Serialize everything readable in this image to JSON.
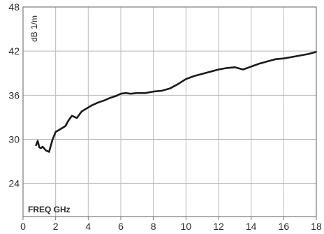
{
  "chart_data": {
    "type": "line",
    "xlabel": "FREQ GHz",
    "ylabel": "dB 1/m",
    "xlim": [
      0,
      18
    ],
    "ylim": [
      19.5,
      48
    ],
    "xticks": [
      0,
      2,
      4,
      6,
      8,
      10,
      12,
      14,
      16,
      18
    ],
    "yticks": [
      24,
      30,
      36,
      42,
      48
    ],
    "grid": true,
    "series": [
      {
        "x": [
          0.8,
          0.9,
          1.0,
          1.1,
          1.2,
          1.4,
          1.6,
          1.8,
          2.0,
          2.3,
          2.6,
          2.8,
          3.0,
          3.3,
          3.6,
          3.9,
          4.2,
          4.6,
          5.0,
          5.3,
          5.7,
          6.0,
          6.3,
          6.6,
          7.0,
          7.5,
          8.0,
          8.5,
          9.0,
          9.5,
          10.0,
          10.5,
          11.0,
          11.5,
          12.0,
          12.5,
          13.0,
          13.5,
          14.0,
          14.5,
          15.0,
          15.5,
          16.0,
          16.5,
          17.0,
          17.5,
          18.0
        ],
        "y": [
          29.2,
          29.8,
          28.9,
          28.8,
          29.0,
          28.5,
          28.3,
          29.9,
          31.0,
          31.4,
          31.8,
          32.6,
          33.2,
          32.9,
          33.8,
          34.2,
          34.6,
          35.0,
          35.3,
          35.6,
          35.9,
          36.2,
          36.3,
          36.2,
          36.3,
          36.3,
          36.5,
          36.6,
          36.9,
          37.5,
          38.2,
          38.6,
          38.9,
          39.2,
          39.5,
          39.7,
          39.8,
          39.5,
          39.9,
          40.3,
          40.6,
          40.9,
          41.0,
          41.2,
          41.4,
          41.6,
          41.9
        ]
      }
    ]
  }
}
